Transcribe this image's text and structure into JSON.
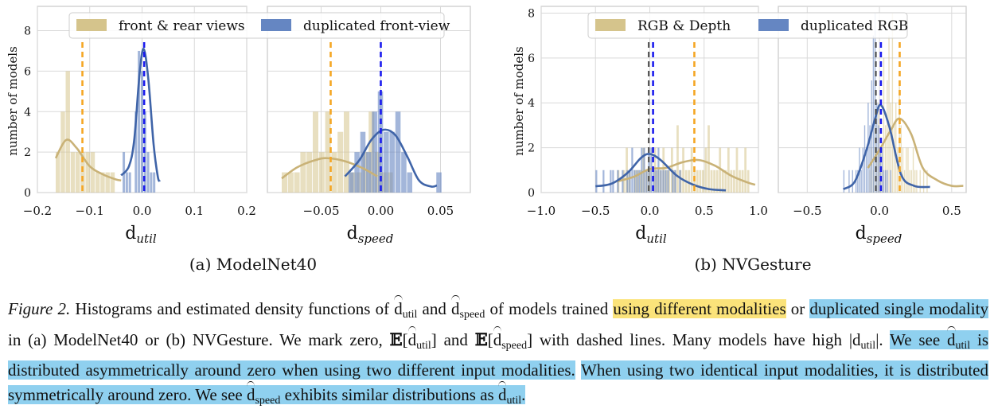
{
  "panels": [
    {
      "caption": "(a) ModelNet40",
      "legend": [
        {
          "label": "front & rear views",
          "color": "#d5c48c"
        },
        {
          "label": "duplicated front-view",
          "color": "#6586c2"
        }
      ],
      "ylabel": "number of models",
      "yticks": [
        "0",
        "2",
        "4",
        "6",
        "8"
      ],
      "subplots": [
        {
          "xlabel_main": "d",
          "xlabel_sub": "util",
          "xticks": [
            "−0.2",
            "−0.1",
            "0.0",
            "0.1",
            "0.2"
          ],
          "xlim": [
            -0.2,
            0.2
          ],
          "ylim": [
            0,
            9.2
          ],
          "bars_a": {
            "start": -0.165,
            "width": 0.0095,
            "values": [
              2,
              4,
              6,
              2,
              2,
              2,
              2,
              2,
              1,
              1,
              1,
              1
            ]
          },
          "bars_b": {
            "start": -0.043,
            "width": 0.0058,
            "values": [
              0,
              2,
              1,
              1,
              0,
              4,
              7,
              6,
              4,
              2,
              1,
              1
            ]
          },
          "kde_a": [
            [
              -0.165,
              1.7
            ],
            [
              -0.145,
              2.6
            ],
            [
              -0.125,
              2.2
            ],
            [
              -0.1,
              1.3
            ],
            [
              -0.075,
              0.9
            ],
            [
              -0.05,
              0.65
            ],
            [
              -0.04,
              0.6
            ]
          ],
          "kde_b": [
            [
              -0.04,
              0.85
            ],
            [
              -0.025,
              1.3
            ],
            [
              -0.015,
              2.6
            ],
            [
              -0.005,
              5.8
            ],
            [
              0.003,
              7.1
            ],
            [
              0.012,
              5.6
            ],
            [
              0.022,
              2.4
            ],
            [
              0.03,
              0.8
            ],
            [
              0.034,
              0.55
            ]
          ],
          "vline_a": -0.114,
          "vline_b": 0.004
        },
        {
          "xlabel_main": "d",
          "xlabel_sub": "speed",
          "xticks": [
            "−0.05",
            "0.00",
            "0.05"
          ],
          "tickvals": [
            -0.05,
            0.0,
            0.05
          ],
          "xlim": [
            -0.095,
            0.075
          ],
          "ylim": [
            0,
            9.2
          ],
          "bars_a": {
            "start": -0.083,
            "width": 0.0052,
            "values": [
              1,
              1,
              1,
              2,
              2,
              4,
              2,
              4,
              2,
              3,
              4,
              1,
              1,
              2,
              4,
              2,
              1,
              1
            ]
          },
          "bars_b": {
            "start": -0.027,
            "width": 0.0049,
            "values": [
              1,
              2,
              3,
              2,
              4,
              5,
              3,
              3,
              4,
              2,
              1,
              0,
              0,
              0,
              0,
              1
            ]
          },
          "kde_a": [
            [
              -0.083,
              0.7
            ],
            [
              -0.07,
              1.25
            ],
            [
              -0.055,
              1.6
            ],
            [
              -0.045,
              1.7
            ],
            [
              -0.03,
              1.55
            ],
            [
              -0.015,
              1.2
            ],
            [
              -0.003,
              0.8
            ]
          ],
          "kde_b": [
            [
              -0.03,
              0.8
            ],
            [
              -0.018,
              1.6
            ],
            [
              -0.008,
              2.6
            ],
            [
              0.002,
              3.1
            ],
            [
              0.012,
              2.85
            ],
            [
              0.022,
              1.8
            ],
            [
              0.032,
              0.6
            ],
            [
              0.042,
              0.3
            ],
            [
              0.047,
              0.35
            ]
          ],
          "vline_a": -0.042,
          "vline_b": 0.0
        }
      ]
    },
    {
      "caption": "(b) NVGesture",
      "legend": [
        {
          "label": "RGB & Depth",
          "color": "#d5c48c"
        },
        {
          "label": "duplicated RGB",
          "color": "#6586c2"
        }
      ],
      "ylabel": "number of models",
      "yticks": [
        "0",
        "2",
        "4",
        "6",
        "8"
      ],
      "subplots": [
        {
          "xlabel_main": "d",
          "xlabel_sub": "util",
          "xticks": [
            "−1.0",
            "−0.5",
            "0.0",
            "0.5",
            "1.0"
          ],
          "xlim": [
            -1.0,
            1.0
          ],
          "ylim": [
            0,
            8.3
          ],
          "bars_a": {
            "start": -0.3,
            "width": 0.026,
            "values": [
              1,
              0,
              1,
              2,
              1,
              0,
              1,
              1,
              1,
              2,
              1,
              1,
              0,
              2,
              1,
              1,
              2,
              1,
              1,
              2,
              1,
              3,
              1,
              2,
              1,
              1,
              2,
              1,
              1,
              1,
              1,
              2,
              3,
              1,
              1,
              1,
              2,
              1,
              1,
              2,
              1,
              1,
              2,
              1,
              1,
              2,
              1
            ]
          },
          "bars_b": {
            "start": -0.5,
            "width": 0.022,
            "values": [
              1,
              0,
              0,
              1,
              0,
              0,
              1,
              1,
              0,
              1,
              0,
              1,
              0,
              1,
              1,
              2,
              1,
              1,
              1,
              2,
              2,
              1,
              2,
              2,
              1,
              1,
              2,
              1,
              1,
              1,
              1,
              0,
              1,
              1,
              0,
              1
            ]
          },
          "kde_a": [
            [
              -0.3,
              0.5
            ],
            [
              -0.15,
              0.7
            ],
            [
              0.0,
              1.05
            ],
            [
              0.15,
              1.1
            ],
            [
              0.3,
              1.35
            ],
            [
              0.45,
              1.45
            ],
            [
              0.6,
              1.2
            ],
            [
              0.75,
              0.75
            ],
            [
              0.9,
              0.45
            ],
            [
              0.97,
              0.35
            ]
          ],
          "kde_b": [
            [
              -0.5,
              0.28
            ],
            [
              -0.35,
              0.4
            ],
            [
              -0.2,
              0.9
            ],
            [
              -0.08,
              1.55
            ],
            [
              0.0,
              1.72
            ],
            [
              0.1,
              1.45
            ],
            [
              0.25,
              0.75
            ],
            [
              0.4,
              0.35
            ],
            [
              0.55,
              0.15
            ],
            [
              0.7,
              0.1
            ]
          ],
          "vline_a": 0.41,
          "vline_b": 0.03,
          "vline_b2": -0.01
        },
        {
          "xlabel_main": "d",
          "xlabel_sub": "speed",
          "xticks": [
            "−0.5",
            "0.0",
            "0.5"
          ],
          "tickvals": [
            -0.5,
            0.0,
            0.5
          ],
          "xlim": [
            -0.7,
            0.6
          ],
          "ylim": [
            0,
            8.3
          ],
          "bars_a": {
            "start": -0.07,
            "width": 0.012,
            "values": [
              1,
              2,
              1,
              3,
              2,
              4,
              2,
              2,
              6,
              3,
              5,
              7,
              4,
              8,
              3,
              4,
              2,
              5,
              3,
              2,
              1,
              2,
              2,
              1,
              1,
              2,
              1,
              1,
              0,
              1,
              0,
              1,
              0,
              1
            ]
          },
          "bars_b": {
            "start": -0.25,
            "width": 0.012,
            "values": [
              1,
              0,
              0,
              1,
              0,
              1,
              0,
              1,
              1,
              2,
              1,
              2,
              3,
              2,
              4,
              3,
              5,
              7,
              8,
              4,
              3,
              2,
              2,
              1,
              1,
              1,
              0,
              1
            ]
          },
          "kde_a": [
            [
              -0.08,
              1.1
            ],
            [
              0.0,
              1.9
            ],
            [
              0.08,
              2.8
            ],
            [
              0.14,
              3.3
            ],
            [
              0.22,
              2.6
            ],
            [
              0.3,
              1.1
            ],
            [
              0.4,
              0.55
            ],
            [
              0.5,
              0.3
            ],
            [
              0.58,
              0.3
            ]
          ],
          "kde_b": [
            [
              -0.25,
              0.15
            ],
            [
              -0.17,
              0.5
            ],
            [
              -0.09,
              1.9
            ],
            [
              -0.03,
              3.3
            ],
            [
              0.01,
              3.9
            ],
            [
              0.07,
              2.9
            ],
            [
              0.15,
              0.8
            ],
            [
              0.24,
              0.3
            ],
            [
              0.35,
              0.25
            ]
          ],
          "vline_a": 0.14,
          "vline_b": 0.01,
          "vline_b2": -0.025
        }
      ]
    }
  ],
  "caption_text": {
    "figlabel": "Figure 2.",
    "t1": " Histograms and estimated density functions of ",
    "d": "d",
    "util": "util",
    "speed": "speed",
    "and": " and ",
    "t2": " of models trained ",
    "hl1": "using different modalities",
    "or": " or ",
    "hl2": "duplicated single modality",
    "t3": " in (a) ModelNet40 or (b) NVGesture. We mark zero, ",
    "E": "𝔼",
    "lb": "[",
    "rb": "]",
    "t4": " and ",
    "t5": " with dashed lines. Many models have high ",
    "abs_open": "|",
    "abs_close": "|.",
    "sp": " ",
    "hl3a": "We see ",
    "hl3b": " is distributed asymmetrically around zero when using two different input modalities.",
    "hl4": "When using two identical input modalities, it is distributed symmetrically around zero. We see ",
    "hl4b": " exhibits similar distributions as ",
    "dot": "."
  },
  "colors": {
    "gold_bar": "#d5c48c",
    "blue_bar": "#6586c2",
    "gold_line": "#c9b277",
    "blue_line": "#3f64a8",
    "dash_gold": "#f5a623",
    "dash_blue": "#1a1aee",
    "grid": "#d9d9d9",
    "highlight_yellow": "#fbe37a",
    "highlight_blue": "#8fd0ef"
  }
}
